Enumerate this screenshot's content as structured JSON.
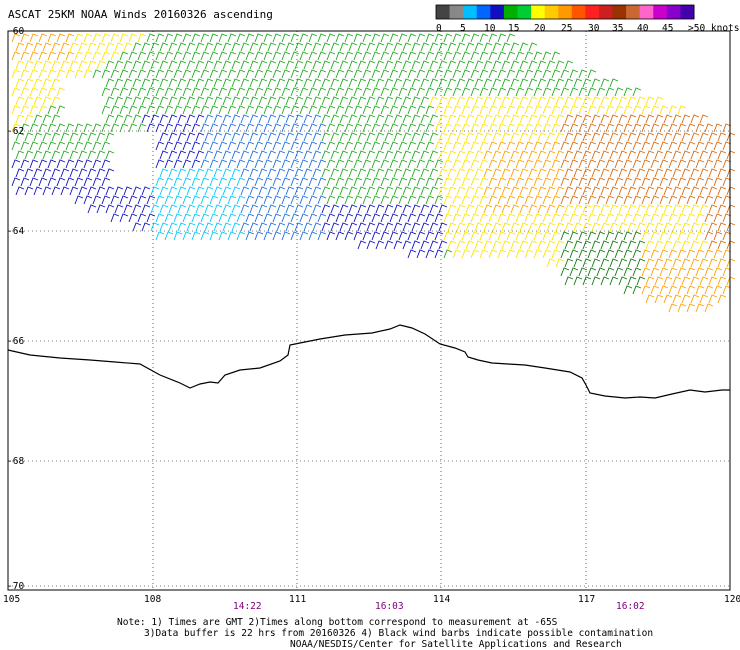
{
  "title": "ASCAT 25KM NOAA Winds 20160326 ascending",
  "legend": {
    "swatches": [
      "#444444",
      "#888888",
      "#00bfff",
      "#0066ff",
      "#1010c0",
      "#00b000",
      "#00cc33",
      "#ffff00",
      "#ffcc00",
      "#ff9900",
      "#ff5500",
      "#ff2020",
      "#cc2020",
      "#993300",
      "#cc6633",
      "#ff66cc",
      "#cc00cc",
      "#8800cc",
      "#4400aa"
    ],
    "labels": [
      "0",
      "5",
      "10",
      "15",
      "20",
      "25",
      "30",
      "35",
      "40",
      "45",
      ">50 knots"
    ]
  },
  "axes": {
    "lon_labels": [
      "105",
      "108",
      "111",
      "114",
      "117",
      "120"
    ],
    "lat_labels": [
      "-60",
      "-62",
      "-64",
      "-66",
      "-68",
      "-70"
    ]
  },
  "times": [
    "14:22",
    "16:03",
    "16:02"
  ],
  "notes": [
    "Note: 1) Times are GMT 2)Times along bottom correspond to measurement at -65S",
    "3)Data buffer is 22 hrs from 20160326 4) Black wind barbs indicate possible contamination",
    "NOAA/NESDIS/Center for Satellite Applications and Research"
  ],
  "colors": {
    "coast": "#000000",
    "grid": "#000000",
    "blue_dark": "#1010c0",
    "blue_mid": "#1e6fe0",
    "cyan": "#00c8ff",
    "green": "#22aa22",
    "dark_green": "#107a10",
    "yellow": "#ffe200",
    "orange": "#ffa000",
    "dark_orange": "#d96a10"
  }
}
